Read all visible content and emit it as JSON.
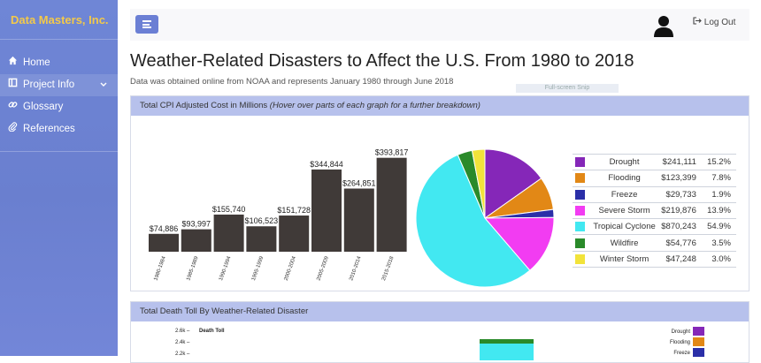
{
  "brand": "Data Masters, Inc.",
  "nav": [
    {
      "label": "Home",
      "icon": "home-icon"
    },
    {
      "label": "Project Info",
      "icon": "book-icon",
      "has_chevron": true
    },
    {
      "label": "Glossary",
      "icon": "link-icon"
    },
    {
      "label": "References",
      "icon": "paperclip-icon"
    }
  ],
  "topbar": {
    "logout_label": "Log Out"
  },
  "page": {
    "title": "Weather-Related Disasters to Affect the U.S. From 1980 to 2018",
    "subtitle": "Data was obtained online from NOAA and represents January 1980 through June 2018",
    "ghost_label": "Full-screen Snip"
  },
  "card1": {
    "title": "Total CPI Adjusted Cost in Millions",
    "hint": "(Hover over parts of each graph for a further breakdown)"
  },
  "card2": {
    "title": "Total Death Toll By Weather-Related Disaster"
  },
  "colors": {
    "bar": "#403a38",
    "accent": "#6b7fd4",
    "header": "#b7c1ec"
  },
  "chart_data": [
    {
      "type": "bar",
      "categories": [
        "1980-1984",
        "1985-1989",
        "1990-1994",
        "1995-1999",
        "2000-2004",
        "2005-2009",
        "2010-2014",
        "2015-2018"
      ],
      "values": [
        74886,
        93997,
        155740,
        106523,
        151728,
        344844,
        264851,
        393817
      ],
      "value_labels": [
        "$74,886",
        "$93,997",
        "$155,740",
        "$106,523",
        "$151,728",
        "$344,844",
        "$264,851",
        "$393,817"
      ],
      "ylim": [
        0,
        400000
      ]
    },
    {
      "type": "pie",
      "categories": [
        "Drought",
        "Flooding",
        "Freeze",
        "Severe Storm",
        "Tropical Cyclone",
        "Wildfire",
        "Winter Storm"
      ],
      "values": [
        241111,
        123399,
        29733,
        219876,
        870243,
        54776,
        47248
      ],
      "value_labels": [
        "$241,111",
        "$123,399",
        "$29,733",
        "$219,876",
        "$870,243",
        "$54,776",
        "$47,248"
      ],
      "percent_labels": [
        "15.2%",
        "7.8%",
        "1.9%",
        "13.9%",
        "54.9%",
        "3.5%",
        "3.0%"
      ],
      "colors": [
        "#8527b8",
        "#e28816",
        "#2b2fa8",
        "#f23cf2",
        "#42e8f1",
        "#2a8a2a",
        "#f2e33a"
      ]
    },
    {
      "type": "bar",
      "title": "Death Toll",
      "ytick_labels": [
        "2.6k",
        "2.4k",
        "2.2k"
      ],
      "legend": [
        "Drought",
        "Flooding",
        "Freeze"
      ],
      "legend_colors": [
        "#8527b8",
        "#e28816",
        "#2b2fa8"
      ]
    }
  ]
}
